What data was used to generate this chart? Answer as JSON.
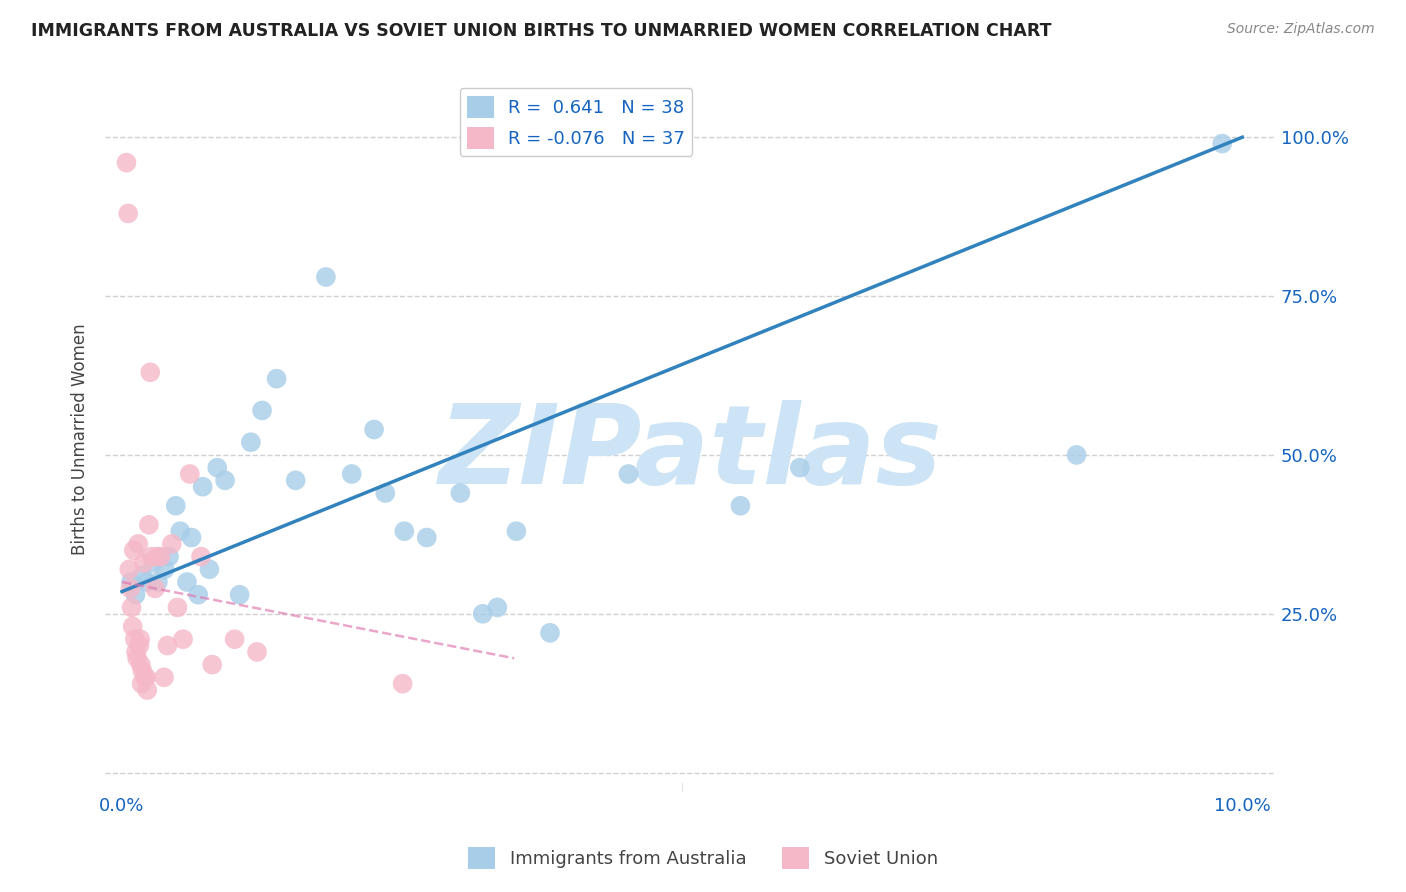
{
  "title": "IMMIGRANTS FROM AUSTRALIA VS SOVIET UNION BIRTHS TO UNMARRIED WOMEN CORRELATION CHART",
  "source": "Source: ZipAtlas.com",
  "ylabel": "Births to Unmarried Women",
  "legend_label_australia": "Immigrants from Australia",
  "legend_label_soviet": "Soviet Union",
  "r_australia": 0.641,
  "n_australia": 38,
  "r_soviet": -0.076,
  "n_soviet": 37,
  "xlim": [
    -0.15,
    10.3
  ],
  "ylim": [
    -3,
    108
  ],
  "xticks": [
    0.0,
    2.5,
    5.0,
    7.5,
    10.0
  ],
  "xtick_labels": [
    "0.0%",
    "",
    "",
    "",
    "10.0%"
  ],
  "yticks": [
    0,
    25,
    50,
    75,
    100
  ],
  "ytick_labels_right": [
    "",
    "25.0%",
    "50.0%",
    "75.0%",
    "100.0%"
  ],
  "color_australia": "#a8cde8",
  "color_soviet": "#f5b8c8",
  "line_color_australia": "#3182bd",
  "line_color_soviet": "#de77ae",
  "background_color": "#ffffff",
  "watermark_text": "ZIPatlas",
  "watermark_color": "#cce4f5",
  "australia_x": [
    0.08,
    0.12,
    0.18,
    0.22,
    0.28,
    0.32,
    0.38,
    0.42,
    0.48,
    0.52,
    0.58,
    0.62,
    0.68,
    0.72,
    0.78,
    0.85,
    0.92,
    1.05,
    1.15,
    1.25,
    1.38,
    1.55,
    1.82,
    2.05,
    2.25,
    2.35,
    2.52,
    2.72,
    3.02,
    3.22,
    3.52,
    3.82,
    4.52,
    5.52,
    6.05,
    8.52,
    9.82,
    3.35
  ],
  "australia_y": [
    30,
    28,
    31,
    30,
    33,
    30,
    32,
    34,
    42,
    38,
    30,
    37,
    28,
    45,
    32,
    48,
    46,
    28,
    52,
    57,
    62,
    46,
    78,
    47,
    54,
    44,
    38,
    37,
    44,
    25,
    38,
    22,
    47,
    42,
    48,
    50,
    99,
    26
  ],
  "soviet_x": [
    0.04,
    0.055,
    0.065,
    0.075,
    0.085,
    0.095,
    0.105,
    0.115,
    0.125,
    0.135,
    0.145,
    0.155,
    0.162,
    0.168,
    0.175,
    0.182,
    0.195,
    0.205,
    0.215,
    0.225,
    0.24,
    0.252,
    0.265,
    0.295,
    0.315,
    0.345,
    0.375,
    0.405,
    0.445,
    0.495,
    0.545,
    0.605,
    0.705,
    0.805,
    1.005,
    1.205,
    2.505
  ],
  "soviet_y": [
    96,
    88,
    32,
    29,
    26,
    23,
    35,
    21,
    19,
    18,
    36,
    20,
    21,
    17,
    14,
    16,
    33,
    15,
    15,
    13,
    39,
    63,
    34,
    29,
    34,
    34,
    15,
    20,
    36,
    26,
    21,
    47,
    34,
    17,
    21,
    19,
    14
  ],
  "reg_aus_x0": 0.0,
  "reg_aus_y0": 28.5,
  "reg_aus_x1": 10.0,
  "reg_aus_y1": 100.0,
  "reg_sov_x0": 0.0,
  "reg_sov_y0": 30.0,
  "reg_sov_x1": 3.5,
  "reg_sov_y1": 18.0
}
